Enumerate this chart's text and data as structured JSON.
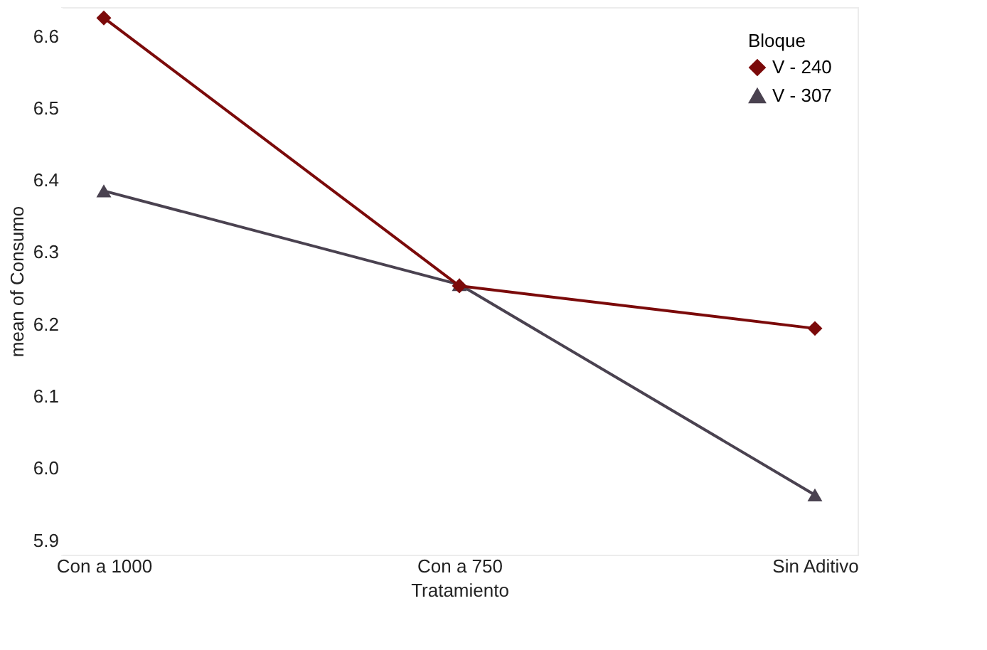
{
  "chart_data": {
    "type": "line",
    "xlabel": "Tratamiento",
    "ylabel": "mean of Consumo",
    "legend_title": "Bloque",
    "categories": [
      "Con a 1000",
      "Con a 750",
      "Sin Aditivo"
    ],
    "series": [
      {
        "name": "V - 240",
        "color": "#7b0a0a",
        "marker": "diamond",
        "values": [
          6.625,
          6.253,
          6.194
        ]
      },
      {
        "name": "V - 307",
        "color": "#4a4250",
        "marker": "triangle",
        "values": [
          6.385,
          6.255,
          5.963
        ]
      }
    ],
    "ylim": [
      5.88,
      6.64
    ],
    "yticks": [
      5.9,
      {
        "value": 6.0,
        "label": "6.0"
      },
      6.1,
      6.2,
      6.3,
      6.4,
      6.5,
      6.6
    ],
    "grid": false,
    "legend": "top right"
  }
}
